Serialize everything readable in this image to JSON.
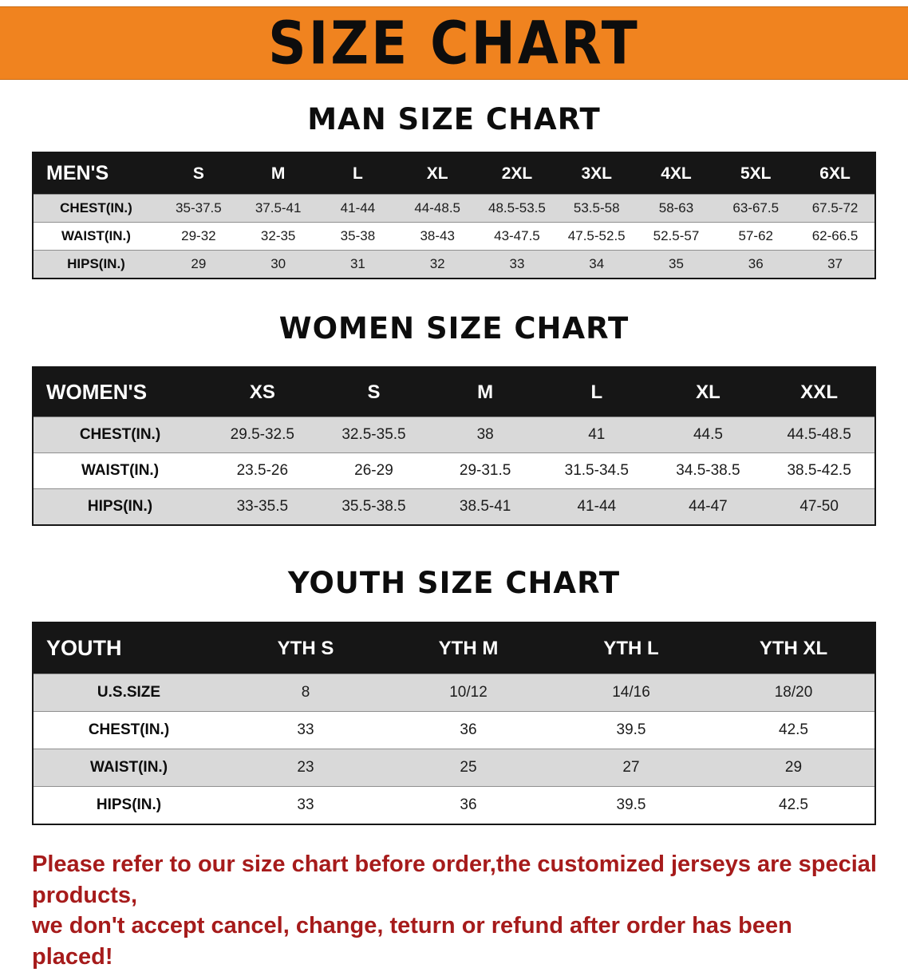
{
  "banner": {
    "title": "SIZE CHART"
  },
  "colors": {
    "banner_bg": "#F0831F",
    "table_header_bg": "#161616",
    "row_stripe": "#D9D9D9",
    "disclaimer_red": "#A61B1B"
  },
  "sections": {
    "men": {
      "heading": "MAN SIZE CHART",
      "table": {
        "header": [
          "MEN'S",
          "S",
          "M",
          "L",
          "XL",
          "2XL",
          "3XL",
          "4XL",
          "5XL",
          "6XL"
        ],
        "rows": [
          [
            "CHEST(IN.)",
            "35-37.5",
            "37.5-41",
            "41-44",
            "44-48.5",
            "48.5-53.5",
            "53.5-58",
            "58-63",
            "63-67.5",
            "67.5-72"
          ],
          [
            "WAIST(IN.)",
            "29-32",
            "32-35",
            "35-38",
            "38-43",
            "43-47.5",
            "47.5-52.5",
            "52.5-57",
            "57-62",
            "62-66.5"
          ],
          [
            "HIPS(IN.)",
            "29",
            "30",
            "31",
            "32",
            "33",
            "34",
            "35",
            "36",
            "37"
          ]
        ]
      }
    },
    "women": {
      "heading": "WOMEN SIZE CHART",
      "table": {
        "header": [
          "WOMEN'S",
          "XS",
          "S",
          "M",
          "L",
          "XL",
          "XXL"
        ],
        "rows": [
          [
            "CHEST(IN.)",
            "29.5-32.5",
            "32.5-35.5",
            "38",
            "41",
            "44.5",
            "44.5-48.5"
          ],
          [
            "WAIST(IN.)",
            "23.5-26",
            "26-29",
            "29-31.5",
            "31.5-34.5",
            "34.5-38.5",
            "38.5-42.5"
          ],
          [
            "HIPS(IN.)",
            "33-35.5",
            "35.5-38.5",
            "38.5-41",
            "41-44",
            "44-47",
            "47-50"
          ]
        ]
      }
    },
    "youth": {
      "heading": "YOUTH SIZE CHART",
      "table": {
        "header": [
          "YOUTH",
          "YTH S",
          "YTH M",
          "YTH L",
          "YTH XL"
        ],
        "rows": [
          [
            "U.S.SIZE",
            "8",
            "10/12",
            "14/16",
            "18/20"
          ],
          [
            "CHEST(IN.)",
            "33",
            "36",
            "39.5",
            "42.5"
          ],
          [
            "WAIST(IN.)",
            "23",
            "25",
            "27",
            "29"
          ],
          [
            "HIPS(IN.)",
            "33",
            "36",
            "39.5",
            "42.5"
          ]
        ]
      }
    }
  },
  "disclaimer": {
    "line1": "Please refer to our size chart before order,the customized jerseys are special products,",
    "line2": "we don't accept cancel, change, teturn or refund after order has been placed!"
  }
}
